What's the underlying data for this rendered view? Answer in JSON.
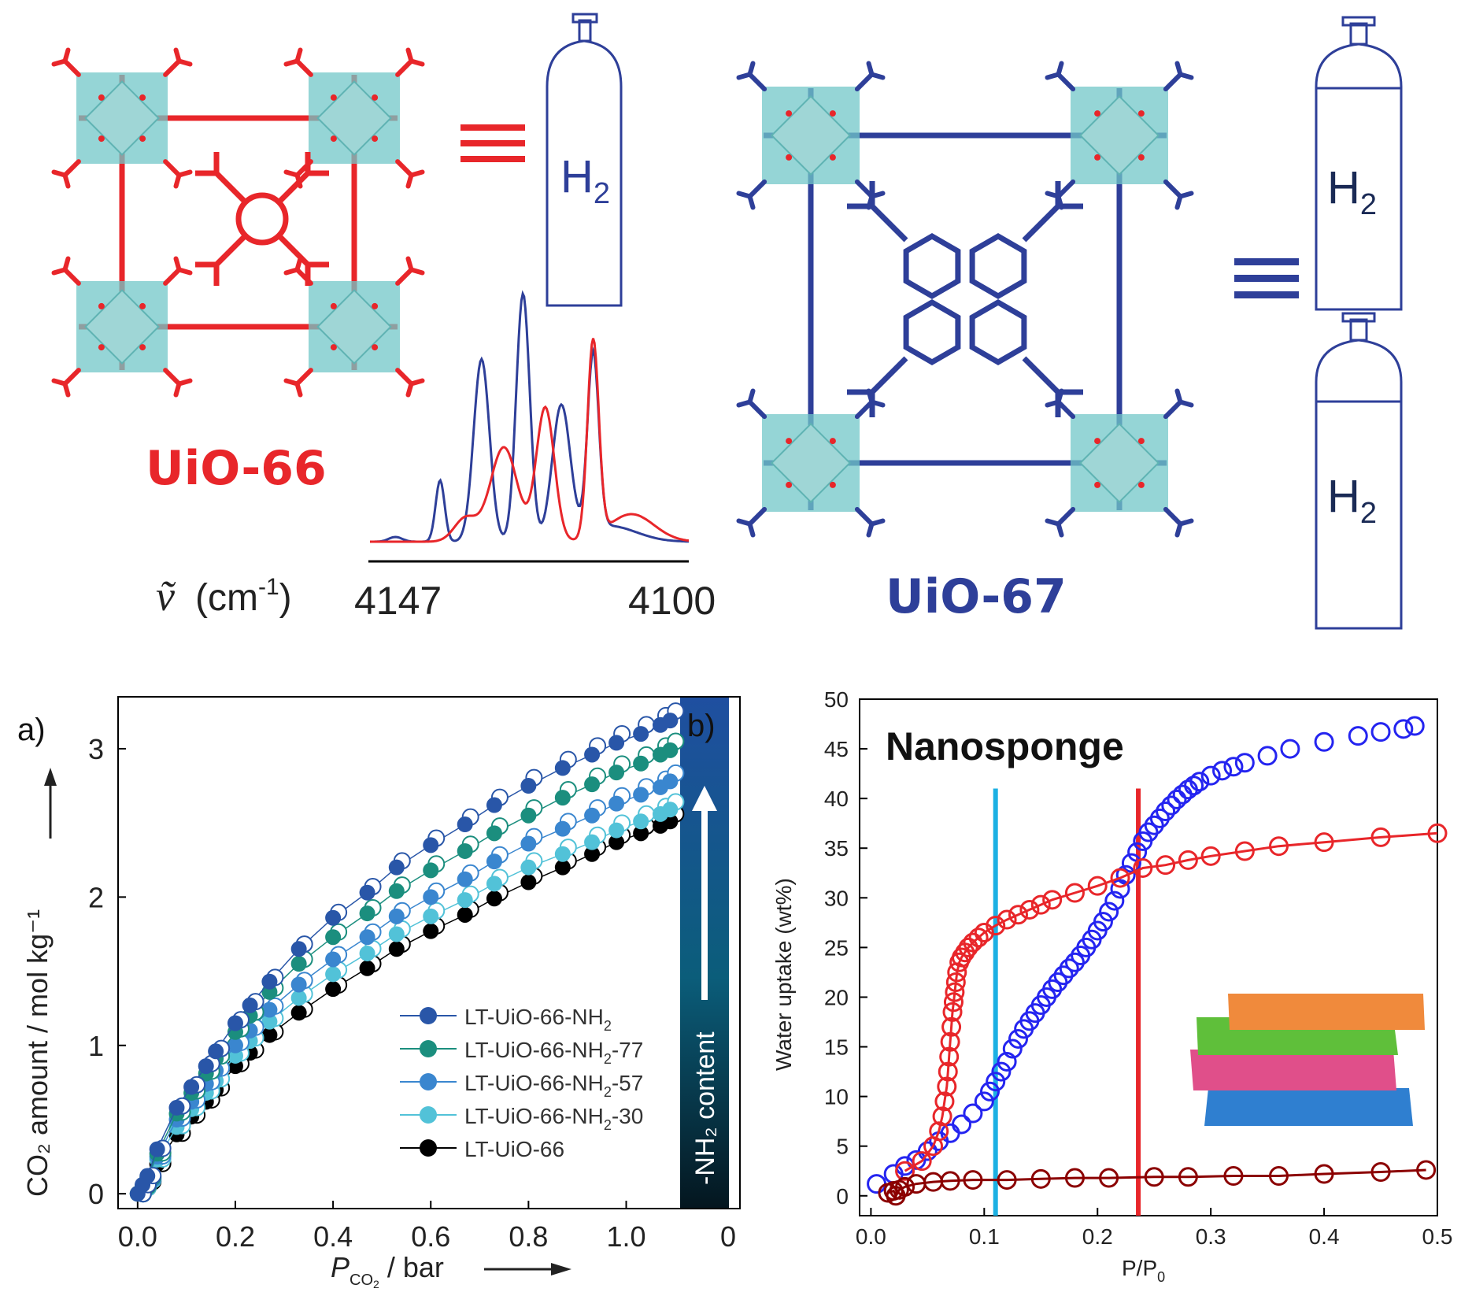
{
  "top": {
    "uio66_label": "UiO-66",
    "uio67_label": "UiO-67",
    "h2": "H",
    "h2_sub": "2",
    "equiv_symbol": "≡",
    "wavenumber_axis": {
      "symbol": "ṽ",
      "unit_prefix": "(cm",
      "unit_sup": "-1",
      "unit_suffix": ")",
      "tick_left": "4147",
      "tick_right": "4100"
    },
    "colors": {
      "uio66": "#e8262a",
      "uio67": "#2e3f99",
      "cluster": "#72c7c8"
    },
    "cylinders": {
      "uio66": 1,
      "uio67": 2
    }
  },
  "chart_data": [
    {
      "id": "co2",
      "type": "scatter",
      "panel_label": "a)",
      "second_panel_label": "b)",
      "xlabel_main": "P",
      "xlabel_sub": "CO",
      "xlabel_sub2": "2",
      "xlabel_unit": " / bar",
      "ylabel": "CO₂ amount / mol kg⁻¹",
      "xlim": [
        -0.04,
        1.12
      ],
      "ylim": [
        -0.1,
        3.35
      ],
      "xticks": [
        "0.0",
        "0.2",
        "0.4",
        "0.6",
        "0.8",
        "1.0"
      ],
      "xtick_values": [
        0,
        0.2,
        0.4,
        0.6,
        0.8,
        1.0
      ],
      "yticks": [
        "0",
        "1",
        "2",
        "3"
      ],
      "ytick_values": [
        0,
        1,
        2,
        3
      ],
      "extra_tick": "0",
      "colorbar_label": "-NH₂ content",
      "x": [
        0,
        0.01,
        0.02,
        0.04,
        0.08,
        0.11,
        0.14,
        0.16,
        0.2,
        0.23,
        0.27,
        0.33,
        0.4,
        0.47,
        0.53,
        0.6,
        0.67,
        0.73,
        0.8,
        0.87,
        0.93,
        0.98,
        1.03,
        1.07,
        1.09
      ],
      "series": [
        {
          "name": "LT-UiO-66-NH₂",
          "name_main": "LT-UiO-66-NH",
          "name_sub": "2",
          "name_tail": "",
          "color": "#2956a8",
          "values": [
            0,
            0.06,
            0.12,
            0.3,
            0.58,
            0.72,
            0.86,
            0.96,
            1.15,
            1.27,
            1.43,
            1.65,
            1.86,
            2.03,
            2.2,
            2.35,
            2.49,
            2.62,
            2.75,
            2.87,
            2.96,
            3.04,
            3.1,
            3.16,
            3.19
          ]
        },
        {
          "name": "LT-UiO-66-NH₂-77",
          "name_main": "LT-UiO-66-NH",
          "name_sub": "2",
          "name_tail": "-77",
          "color": "#1b8e7e",
          "values": [
            0,
            0.05,
            0.11,
            0.27,
            0.54,
            0.68,
            0.81,
            0.91,
            1.09,
            1.2,
            1.36,
            1.55,
            1.73,
            1.89,
            2.04,
            2.18,
            2.31,
            2.43,
            2.55,
            2.67,
            2.76,
            2.84,
            2.9,
            2.96,
            2.99
          ]
        },
        {
          "name": "LT-UiO-66-NH₂-57",
          "name_main": "LT-UiO-66-NH",
          "name_sub": "2",
          "name_tail": "-57",
          "color": "#3a86cf",
          "values": [
            0,
            0.05,
            0.1,
            0.25,
            0.5,
            0.62,
            0.74,
            0.83,
            1.0,
            1.1,
            1.24,
            1.41,
            1.58,
            1.73,
            1.87,
            2.0,
            2.12,
            2.24,
            2.36,
            2.46,
            2.55,
            2.63,
            2.69,
            2.74,
            2.78
          ]
        },
        {
          "name": "LT-UiO-66-NH₂-30",
          "name_main": "LT-UiO-66-NH",
          "name_sub": "2",
          "name_tail": "-30",
          "color": "#52c2d8",
          "values": [
            0,
            0.04,
            0.09,
            0.23,
            0.45,
            0.57,
            0.68,
            0.76,
            0.93,
            1.03,
            1.16,
            1.32,
            1.48,
            1.62,
            1.75,
            1.87,
            1.98,
            2.09,
            2.2,
            2.29,
            2.37,
            2.45,
            2.51,
            2.56,
            2.59
          ]
        },
        {
          "name": "LT-UiO-66",
          "name_main": "LT-UiO-66",
          "name_sub": "",
          "name_tail": "",
          "color": "#000000",
          "values": [
            0,
            0.04,
            0.08,
            0.2,
            0.4,
            0.52,
            0.62,
            0.7,
            0.86,
            0.95,
            1.07,
            1.22,
            1.38,
            1.52,
            1.65,
            1.77,
            1.88,
            1.99,
            2.1,
            2.2,
            2.29,
            2.37,
            2.43,
            2.48,
            2.51
          ]
        }
      ]
    },
    {
      "id": "water",
      "type": "scatter",
      "title": "Nanosponge",
      "xlabel_main": "P/P",
      "xlabel_sub": "0",
      "ylabel": "Water uptake (wt%)",
      "xlim": [
        -0.01,
        0.5
      ],
      "ylim": [
        -2,
        50
      ],
      "xticks": [
        "0.0",
        "0.1",
        "0.2",
        "0.3",
        "0.4",
        "0.5"
      ],
      "xtick_values": [
        0,
        0.1,
        0.2,
        0.3,
        0.4,
        0.5
      ],
      "yticks": [
        "0",
        "5",
        "10",
        "15",
        "20",
        "25",
        "30",
        "35",
        "40",
        "45",
        "50"
      ],
      "ytick_values": [
        0,
        5,
        10,
        15,
        20,
        25,
        30,
        35,
        40,
        45,
        50
      ],
      "vlines": [
        {
          "x": 0.11,
          "color": "#1cb0e3"
        },
        {
          "x": 0.236,
          "color": "#e8262a"
        }
      ],
      "series": [
        {
          "color": "#2424f0",
          "x": [
            0.005,
            0.02,
            0.03,
            0.04,
            0.05,
            0.06,
            0.07,
            0.08,
            0.09,
            0.1,
            0.105,
            0.11,
            0.115,
            0.12,
            0.125,
            0.13,
            0.135,
            0.14,
            0.145,
            0.15,
            0.155,
            0.16,
            0.165,
            0.17,
            0.175,
            0.18,
            0.185,
            0.19,
            0.195,
            0.2,
            0.205,
            0.21,
            0.215,
            0.22,
            0.225,
            0.23,
            0.235,
            0.24,
            0.245,
            0.25,
            0.255,
            0.26,
            0.265,
            0.27,
            0.275,
            0.28,
            0.285,
            0.29,
            0.3,
            0.31,
            0.32,
            0.33,
            0.35,
            0.37,
            0.4,
            0.43,
            0.45,
            0.47,
            0.48
          ],
          "values": [
            1.2,
            2.2,
            3.0,
            3.6,
            4.5,
            5.5,
            6.3,
            7.2,
            8.3,
            9.5,
            10.5,
            11.5,
            12.5,
            13.5,
            14.8,
            15.8,
            16.8,
            17.6,
            18.4,
            19.2,
            20.0,
            20.8,
            21.5,
            22.2,
            22.9,
            23.5,
            24.2,
            25.0,
            25.8,
            26.7,
            27.6,
            28.6,
            29.7,
            30.9,
            32.3,
            33.5,
            34.6,
            35.7,
            36.6,
            37.3,
            38.0,
            38.7,
            39.3,
            39.9,
            40.4,
            40.9,
            41.3,
            41.7,
            42.3,
            42.8,
            43.2,
            43.6,
            44.3,
            45.0,
            45.7,
            46.3,
            46.7,
            47.0,
            47.3
          ]
        },
        {
          "color": "#e8262a",
          "lines": true,
          "x": [
            0.03,
            0.045,
            0.055,
            0.06,
            0.063,
            0.065,
            0.067,
            0.068,
            0.069,
            0.07,
            0.071,
            0.072,
            0.073,
            0.074,
            0.075,
            0.076,
            0.078,
            0.08,
            0.083,
            0.086,
            0.09,
            0.095,
            0.1,
            0.11,
            0.12,
            0.13,
            0.14,
            0.15,
            0.16,
            0.18,
            0.2,
            0.22,
            0.24,
            0.26,
            0.28,
            0.3,
            0.33,
            0.36,
            0.4,
            0.45,
            0.5
          ],
          "values": [
            2.5,
            3.5,
            5,
            6.5,
            8,
            9.5,
            11,
            12.5,
            14,
            15.5,
            17,
            18.5,
            19.5,
            20.5,
            21.5,
            22.5,
            23.5,
            24,
            24.5,
            25,
            25.5,
            26,
            26.5,
            27.2,
            27.8,
            28.3,
            28.8,
            29.3,
            29.8,
            30.5,
            31.2,
            32,
            33,
            33.3,
            33.8,
            34.2,
            34.7,
            35.2,
            35.6,
            36.1,
            36.5
          ]
        },
        {
          "color": "#8b0000",
          "lines": true,
          "x": [
            0.015,
            0.02,
            0.022,
            0.025,
            0.03,
            0.04,
            0.055,
            0.07,
            0.09,
            0.12,
            0.15,
            0.18,
            0.21,
            0.25,
            0.28,
            0.32,
            0.36,
            0.4,
            0.45,
            0.49
          ],
          "values": [
            0.3,
            0.5,
            0,
            0.6,
            0.9,
            1.2,
            1.4,
            1.5,
            1.6,
            1.6,
            1.7,
            1.8,
            1.8,
            1.9,
            1.9,
            2.0,
            2.0,
            2.2,
            2.4,
            2.6
          ]
        }
      ]
    }
  ]
}
